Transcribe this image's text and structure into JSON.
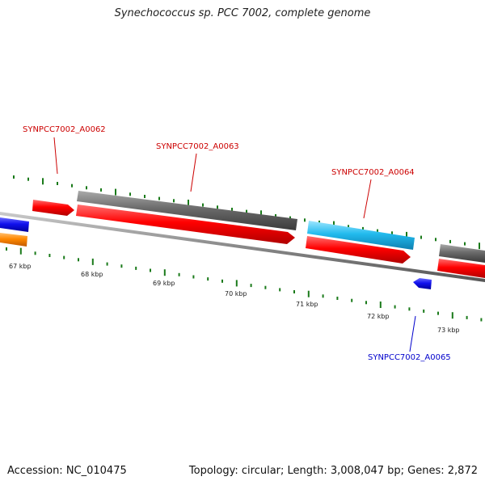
{
  "title": "Synechococcus sp. PCC 7002, complete genome",
  "footer": {
    "accession": "Accession: NC_010475",
    "summary": "Topology: circular; Length: 3,008,047 bp; Genes: 2,872"
  },
  "colors": {
    "backbone": "#888888",
    "tick": "#1a7a1a",
    "cds_forward": "#ee0000",
    "gene_gray": "#666666",
    "gene_cyan": "#22bbee",
    "gene_blue": "#1010ee",
    "gene_orange": "#ff8800",
    "label_red": "#cc0000",
    "label_blue": "#0000cc"
  },
  "ticks": [
    "67 kbp",
    "68 kbp",
    "69 kbp",
    "70 kbp",
    "71 kbp",
    "72 kbp",
    "73 kbp"
  ],
  "gene_labels": [
    {
      "text": "SYNPCC7002_A0062",
      "color": "red"
    },
    {
      "text": "SYNPCC7002_A0063",
      "color": "red"
    },
    {
      "text": "SYNPCC7002_A0064",
      "color": "red"
    },
    {
      "text": "SYNPCC7002_A0065",
      "color": "blue"
    }
  ]
}
